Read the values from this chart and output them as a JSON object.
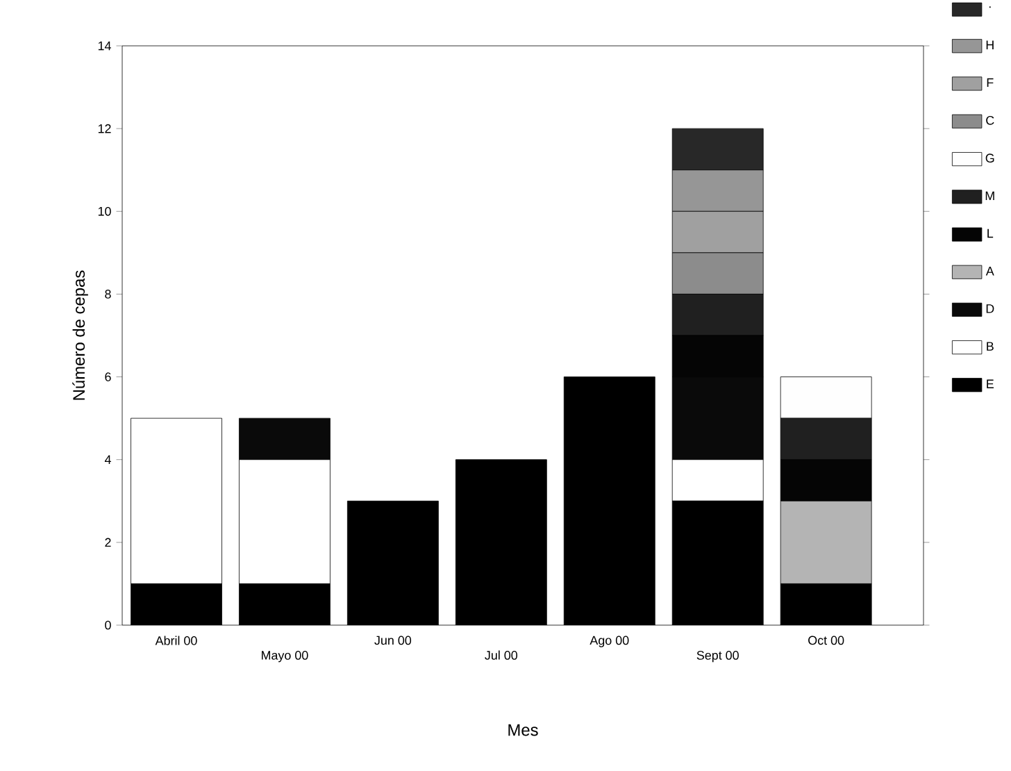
{
  "chart_data": {
    "type": "bar",
    "stacked": true,
    "categories": [
      "Abril 00",
      "Mayo  00",
      "Jun  00",
      "Jul  00",
      "Ago 00",
      "Sept 00",
      "Oct  00"
    ],
    "xlabel": "Mes",
    "ylabel": "Número de cepas",
    "ylim": [
      0,
      14
    ],
    "yticks": [
      0,
      2,
      4,
      6,
      8,
      10,
      12,
      14
    ],
    "legend": "right",
    "grid": false,
    "series": [
      {
        "name": "E",
        "color": "#000000",
        "values": [
          1,
          1,
          3,
          4,
          6,
          3,
          1
        ]
      },
      {
        "name": "B",
        "color": "#ffffff",
        "values": [
          4,
          3,
          0,
          0,
          0,
          1,
          0
        ]
      },
      {
        "name": "D",
        "color": "#0a0a0a",
        "values": [
          0,
          1,
          0,
          0,
          0,
          2,
          0
        ]
      },
      {
        "name": "A",
        "color": "#b4b4b4",
        "values": [
          0,
          0,
          0,
          0,
          0,
          0,
          2
        ]
      },
      {
        "name": "L",
        "color": "#050505",
        "values": [
          0,
          0,
          0,
          0,
          0,
          1,
          1
        ]
      },
      {
        "name": "M",
        "color": "#202020",
        "values": [
          0,
          0,
          0,
          0,
          0,
          1,
          1
        ]
      },
      {
        "name": "G",
        "color": "#fefefe",
        "values": [
          0,
          0,
          0,
          0,
          0,
          0,
          1
        ]
      },
      {
        "name": "C",
        "color": "#8c8c8c",
        "values": [
          0,
          0,
          0,
          0,
          0,
          1,
          0
        ]
      },
      {
        "name": "F",
        "color": "#a0a0a0",
        "values": [
          0,
          0,
          0,
          0,
          0,
          1,
          0
        ]
      },
      {
        "name": "H",
        "color": "#969696",
        "values": [
          0,
          0,
          0,
          0,
          0,
          1,
          0
        ]
      },
      {
        "name": "·",
        "color": "#282828",
        "values": [
          0,
          0,
          0,
          0,
          0,
          1,
          0
        ]
      }
    ]
  }
}
